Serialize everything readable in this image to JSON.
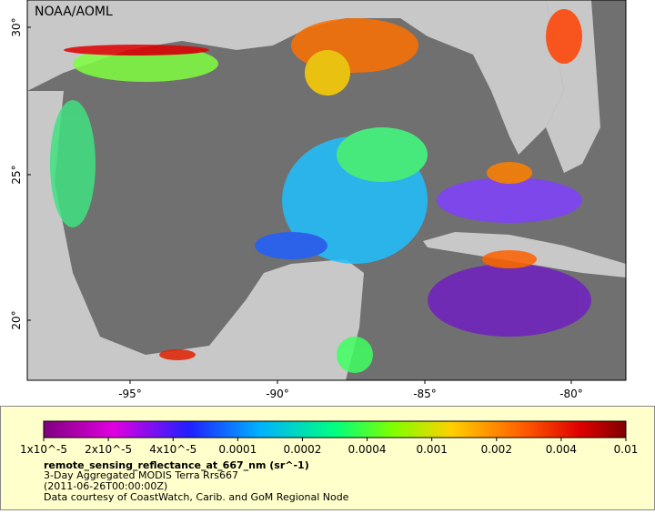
{
  "map": {
    "credit": "NOAA/AOML",
    "lat_labels": [
      "30°",
      "25°",
      "20°"
    ],
    "lon_labels": [
      "-95°",
      "-90°",
      "-85°",
      "-80°"
    ]
  },
  "legend": {
    "scale_labels": [
      "1x10^-5",
      "2x10^-5",
      "4x10^-5",
      "0.0001",
      "0.0002",
      "0.0004",
      "0.001",
      "0.002",
      "0.004",
      "0.01"
    ],
    "variable": "remote_sensing_reflectance_at_667_nm (sr^-1)",
    "lines": [
      "3-Day Aggregated MODIS Terra Rrs667",
      "(2011-06-26T00:00:00Z)",
      "Data courtesy of CoastWatch, Carib. and GoM Regional Node"
    ]
  }
}
